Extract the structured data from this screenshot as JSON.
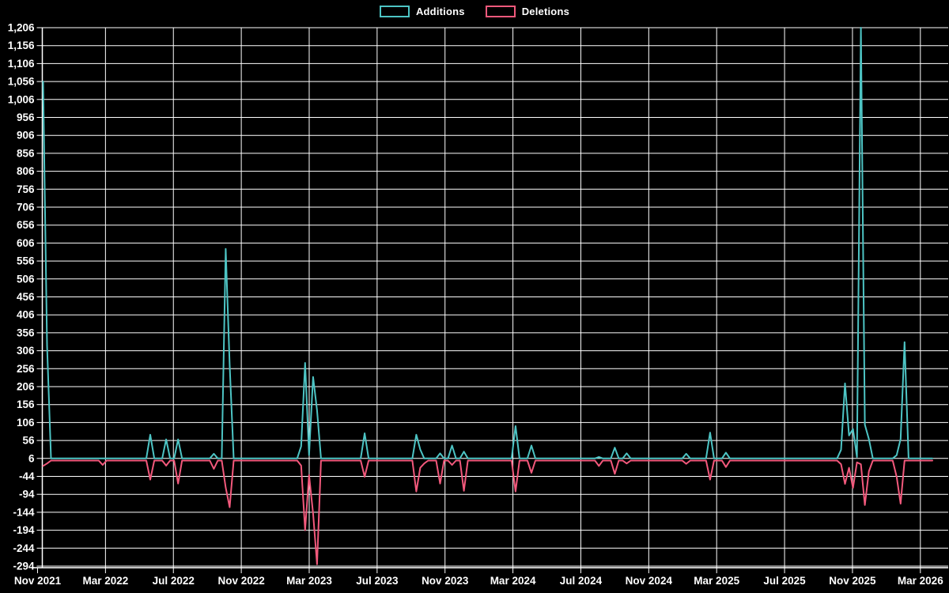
{
  "legend": {
    "additions_label": "Additions",
    "deletions_label": "Deletions"
  },
  "colors": {
    "background": "#000000",
    "grid": "#ffffff",
    "text": "#ffffff",
    "additions": "#4dc4c4",
    "deletions": "#f2597c"
  },
  "chart_data": {
    "type": "line",
    "title": "",
    "xlabel": "",
    "ylabel": "",
    "legend_position": "top-center",
    "grid": true,
    "x_tick_labels": [
      "Nov 2021",
      "Mar 2022",
      "Jul 2022",
      "Nov 2022",
      "Mar 2023",
      "Jul 2023",
      "Nov 2023",
      "Mar 2024",
      "Jul 2024",
      "Nov 2024",
      "Mar 2025",
      "Jul 2025",
      "Nov 2025",
      "Mar 2026"
    ],
    "y_axis": {
      "min": -294,
      "max": 1206,
      "step": 50
    },
    "total_weeks": 225,
    "series": [
      {
        "name": "Additions",
        "color": "#4dc4c4",
        "baseline": 6,
        "events": {
          "0": 1056,
          "1": 321,
          "27": 72,
          "31": 59,
          "34": 59,
          "43": 19,
          "46": 590,
          "47": 267,
          "65": 40,
          "66": 272,
          "67": 15,
          "68": 233,
          "69": 140,
          "81": 76,
          "94": 72,
          "95": 31,
          "100": 20,
          "103": 42,
          "106": 25,
          "119": 96,
          "123": 42,
          "140": 10,
          "144": 36,
          "147": 20,
          "162": 19,
          "168": 78,
          "172": 22,
          "201": 30,
          "202": 215,
          "203": 70,
          "204": 88,
          "205": 10,
          "206": 1206,
          "207": 100,
          "208": 60,
          "215": 15,
          "216": 60,
          "217": 330
        }
      },
      {
        "name": "Deletions",
        "color": "#f2597c",
        "baseline": 0,
        "events": {
          "0": -15,
          "1": -8,
          "15": -12,
          "27": -53,
          "31": -14,
          "34": -64,
          "43": -23,
          "46": -75,
          "47": -130,
          "65": -14,
          "66": -194,
          "67": -40,
          "68": -147,
          "69": -289,
          "81": -45,
          "94": -86,
          "95": -20,
          "96": -8,
          "100": -64,
          "103": -12,
          "106": -84,
          "119": -86,
          "123": -34,
          "140": -15,
          "144": -37,
          "147": -8,
          "162": -9,
          "168": -53,
          "172": -18,
          "201": -10,
          "202": -65,
          "203": -20,
          "204": -76,
          "205": -5,
          "206": -10,
          "207": -124,
          "208": -30,
          "215": -45,
          "216": -120
        }
      }
    ]
  }
}
